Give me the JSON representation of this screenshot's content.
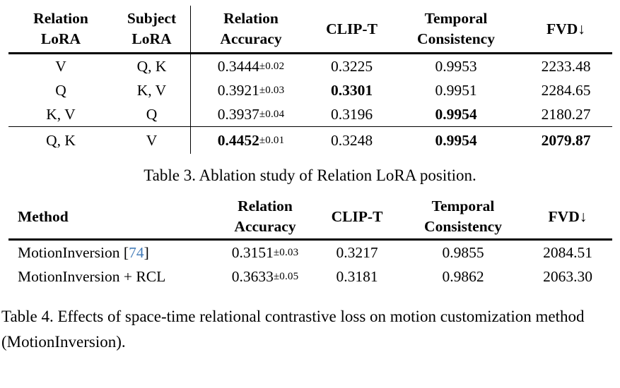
{
  "colors": {
    "background": "#ffffff",
    "text": "#000000",
    "citation_link": "#447cb8"
  },
  "table3": {
    "column_headers": [
      [
        "Relation",
        "LoRA"
      ],
      [
        "Subject",
        "LoRA"
      ],
      [
        "Relation",
        "Accuracy"
      ],
      [
        "CLIP-T"
      ],
      [
        "Temporal",
        "Consistency"
      ],
      [
        "FVD↓"
      ]
    ],
    "rows": [
      {
        "relation_lora": "V",
        "subject_lora": "Q, K",
        "relation_accuracy": "0.3444",
        "relation_accuracy_pm": "±0.02",
        "clip_t": "0.3225",
        "temporal_consistency": "0.9953",
        "fvd": "2233.48",
        "bold_columns": []
      },
      {
        "relation_lora": "Q",
        "subject_lora": "K, V",
        "relation_accuracy": "0.3921",
        "relation_accuracy_pm": "±0.03",
        "clip_t": "0.3301",
        "temporal_consistency": "0.9951",
        "fvd": "2284.65",
        "bold_columns": [
          "clip_t"
        ]
      },
      {
        "relation_lora": "K, V",
        "subject_lora": "Q",
        "relation_accuracy": "0.3937",
        "relation_accuracy_pm": "±0.04",
        "clip_t": "0.3196",
        "temporal_consistency": "0.9954",
        "fvd": "2180.27",
        "bold_columns": [
          "temporal_consistency"
        ]
      },
      {
        "relation_lora": "Q, K",
        "subject_lora": "V",
        "relation_accuracy": "0.4452",
        "relation_accuracy_pm": "±0.01",
        "clip_t": "0.3248",
        "temporal_consistency": "0.9954",
        "fvd": "2079.87",
        "bold_columns": [
          "relation_accuracy",
          "temporal_consistency",
          "fvd"
        ]
      }
    ],
    "caption": "Table 3. Ablation study of Relation LoRA position."
  },
  "table4": {
    "column_headers": [
      [
        "Method"
      ],
      [
        "Relation",
        "Accuracy"
      ],
      [
        "CLIP-T"
      ],
      [
        "Temporal",
        "Consistency"
      ],
      [
        "FVD↓"
      ]
    ],
    "rows": [
      {
        "method": "MotionInversion ",
        "cite_open": "[",
        "cite_num": "74",
        "cite_close": "]",
        "relation_accuracy": "0.3151",
        "relation_accuracy_pm": "±0.03",
        "clip_t": "0.3217",
        "temporal_consistency": "0.9855",
        "fvd": "2084.51"
      },
      {
        "method": "MotionInversion + RCL",
        "cite_open": "",
        "cite_num": "",
        "cite_close": "",
        "relation_accuracy": "0.3633",
        "relation_accuracy_pm": "±0.05",
        "clip_t": "0.3181",
        "temporal_consistency": "0.9862",
        "fvd": "2063.30"
      }
    ],
    "caption": "Table 4. Effects of space-time relational contrastive loss on motion customization method (MotionInversion)."
  }
}
